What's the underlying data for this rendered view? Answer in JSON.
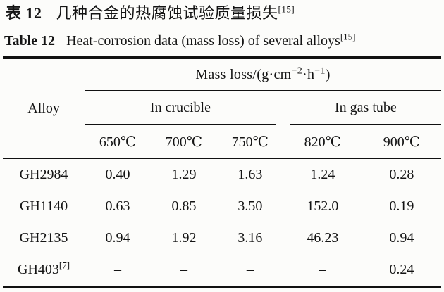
{
  "captions": {
    "zh": {
      "label": "表 12",
      "text": "几种合金的热腐蚀试验质量损失",
      "ref": "[15]"
    },
    "en": {
      "label": "Table 12",
      "text": "Heat-corrosion data (mass loss) of several alloys",
      "ref": "[15]"
    }
  },
  "table": {
    "alloy_header": "Alloy",
    "unit_header": {
      "prefix": "Mass loss/(g·cm",
      "sup1": "−2",
      "mid": "·h",
      "sup2": "−1",
      "suffix": ")"
    },
    "groups": {
      "crucible": "In crucible",
      "gas_tube": "In gas tube"
    },
    "temps": [
      "650℃",
      "700℃",
      "750℃",
      "820℃",
      "900℃"
    ],
    "rows": [
      {
        "alloy": "GH2984",
        "ref": "",
        "values": [
          "0.40",
          "1.29",
          "1.63",
          "1.24",
          "0.28"
        ]
      },
      {
        "alloy": "GH1140",
        "ref": "",
        "values": [
          "0.63",
          "0.85",
          "3.50",
          "152.0",
          "0.19"
        ]
      },
      {
        "alloy": "GH2135",
        "ref": "",
        "values": [
          "0.94",
          "1.92",
          "3.16",
          "46.23",
          "0.94"
        ]
      },
      {
        "alloy": "GH403",
        "ref": "[7]",
        "values": [
          "–",
          "–",
          "–",
          "–",
          "0.24"
        ]
      }
    ]
  }
}
